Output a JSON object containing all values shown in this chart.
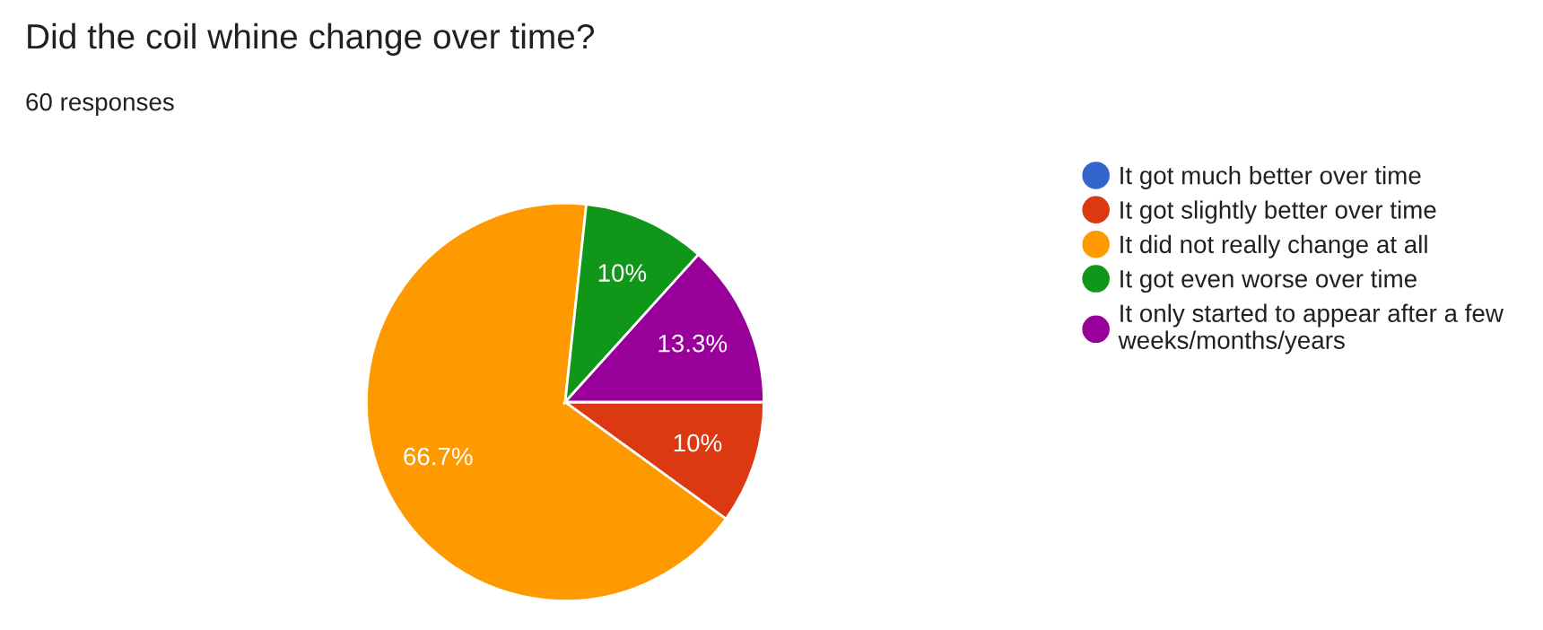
{
  "chart_data": {
    "type": "pie",
    "title": "Did the coil whine change over time?",
    "subtitle": "60 responses",
    "categories": [
      "It got much better over time",
      "It got slightly better over time",
      "It did not really change at all",
      "It got even worse over time",
      "It only started to appear after a few weeks/months/years"
    ],
    "values": [
      0,
      10,
      66.7,
      10,
      13.3
    ],
    "value_labels": [
      null,
      "10%",
      "66.7%",
      "10%",
      "13.3%"
    ],
    "colors": [
      "#3366cc",
      "#dc3912",
      "#ff9900",
      "#109618",
      "#990099"
    ],
    "legend": "right"
  }
}
